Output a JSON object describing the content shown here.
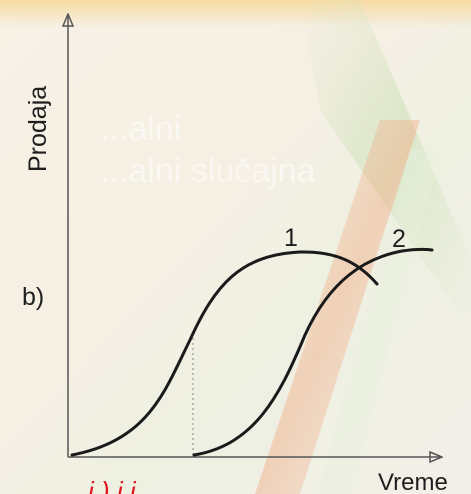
{
  "diagram": {
    "y_label": "Prodaja",
    "x_label": "Vreme",
    "panel_label": "b)",
    "curve_1_label": "1",
    "curve_2_label": "2",
    "ghost_text_line1": "...alni",
    "ghost_text_line2": "...alni slučajna",
    "bottom_fragment": "i ) i  i",
    "colors": {
      "curve": "#1a1a1a",
      "axis": "#555555",
      "accent_red": "#e0161c",
      "background": "#f6efe4"
    }
  }
}
